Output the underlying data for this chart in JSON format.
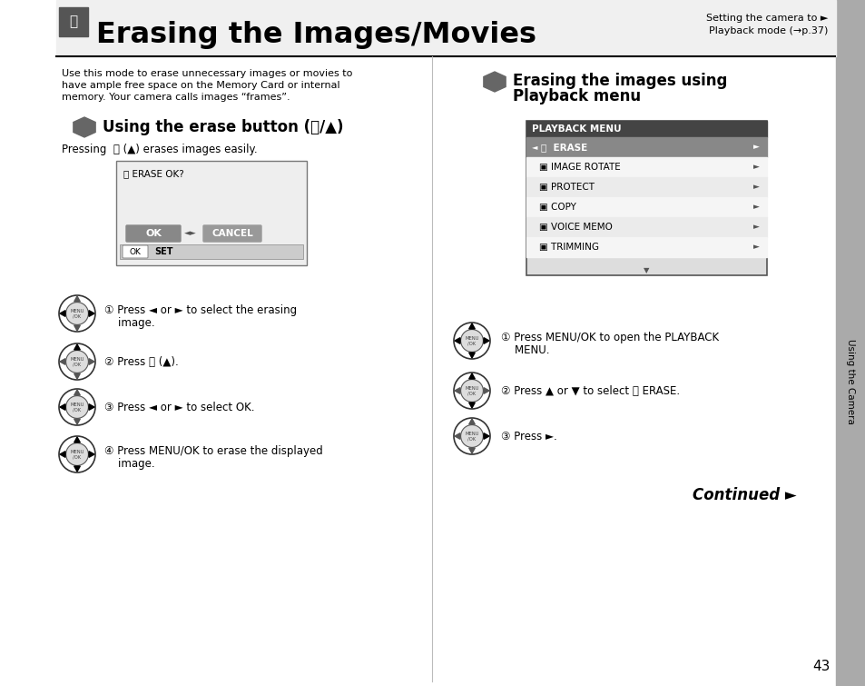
{
  "title": "Erasing the Images/Movies",
  "top_right_line1": "Setting the camera to ►",
  "top_right_line2": "Playback mode (→p.37)",
  "bg_color": "#ffffff",
  "page_number": "43",
  "left_section_header": "Using the erase button (㎮/▲)",
  "left_intro_lines": [
    "Use this mode to erase unnecessary images or movies to",
    "have ample free space on the Memory Card or internal",
    "memory. Your camera calls images “frames”."
  ],
  "left_pressing": "Pressing  ㎮ (▲) erases images easily.",
  "erase_dialog_title": "㎮ ERASE OK?",
  "step1_left": "① Press ◄ or ► to select the erasing",
  "step1_left_b": "    image.",
  "step2_left": "② Press ㎮ (▲).",
  "step3_left": "③ Press ◄ or ► to select OK.",
  "step4_left": "④ Press MENU/OK to erase the displayed",
  "step4_left_b": "    image.",
  "right_header_line1": "Erasing the images using",
  "right_header_line2": "Playback menu",
  "playback_menu_title": "PLAYBACK MENU",
  "playback_menu_items": [
    "㎮  ERASE",
    "▣ IMAGE ROTATE",
    "▣ PROTECT",
    "▣ COPY",
    "▣ VOICE MEMO",
    "▣ TRIMMING"
  ],
  "step1_right_a": "① Press MENU/OK to open the PLAYBACK",
  "step1_right_b": "    MENU.",
  "step2_right": "② Press ▲ or ▼ to select ㎮ ERASE.",
  "step3_right": "③ Press ►.",
  "continued_text": "Continued ►",
  "sidebar_text": "Using the Camera"
}
